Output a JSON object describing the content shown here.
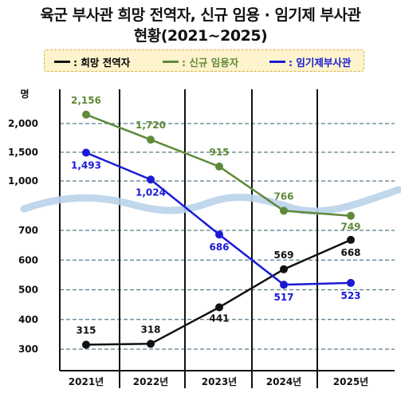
{
  "title": {
    "line1": "육군 부사관 희망 전역자, 신규 임용 · 임기제 부사관",
    "line2": "현황(2021~2025)"
  },
  "colors": {
    "series1": "#111111",
    "series2": "#5f8a3a",
    "series3": "#1a1ad6",
    "grid": "#5a7a8a",
    "break_band": "#b9d3ea",
    "legend_bg": "#fdf3cc"
  },
  "chart_data": {
    "type": "line",
    "title": "육군 부사관 희망 전역자, 신규 임용 · 임기제 부사관 현황(2021~2025)",
    "ylabel": "명",
    "xlabel": "",
    "categories": [
      "2021년",
      "2022년",
      "2023년",
      "2024년",
      "2025년"
    ],
    "y_axis": "broken",
    "y_ticks_upper": [
      "2,000",
      "1,500",
      "1,000"
    ],
    "y_ticks_lower": [
      "700",
      "600",
      "500",
      "400",
      "300"
    ],
    "ylim_upper": [
      1000,
      2000
    ],
    "ylim_lower": [
      300,
      700
    ],
    "grid": true,
    "legend_position": "top",
    "series": [
      {
        "name": ": 희망 전역자",
        "values": [
          315,
          318,
          441,
          569,
          668
        ],
        "labels": [
          "315",
          "318",
          "441",
          "569",
          "668"
        ],
        "color": "#111111"
      },
      {
        "name": ": 신규 임용자",
        "values": [
          2156,
          1720,
          915,
          766,
          749
        ],
        "labels": [
          "2,156",
          "1,720",
          "915",
          "766",
          "749"
        ],
        "color": "#5f8a3a"
      },
      {
        "name": ": 임기제부사관",
        "values": [
          1493,
          1024,
          686,
          517,
          523
        ],
        "labels": [
          "1,493",
          "1,024",
          "686",
          "517",
          "523"
        ],
        "color": "#1a1ad6"
      }
    ]
  }
}
